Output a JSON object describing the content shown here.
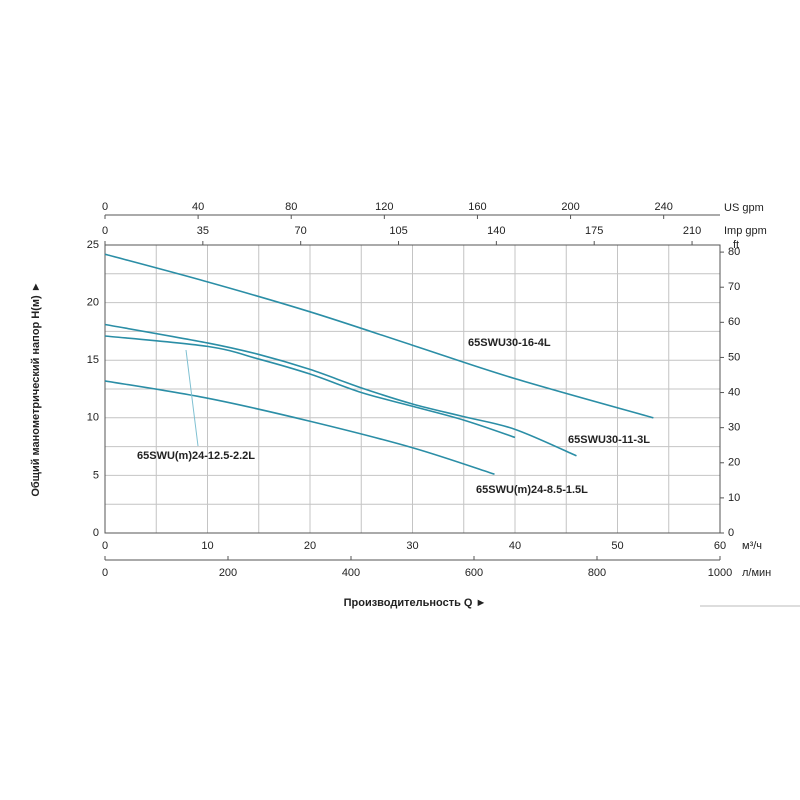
{
  "chart_data": {
    "type": "line",
    "y_label": "Общий манометрический напор  H(м)  ►",
    "x_label": "Производительность Q  ►",
    "x_unit": "м³/ч",
    "xlim": [
      0,
      60
    ],
    "xticks": [
      0,
      10,
      20,
      30,
      40,
      50,
      60
    ],
    "x_minor_ticks": [
      5,
      15,
      25,
      35,
      45,
      55
    ],
    "ylim": [
      0,
      25
    ],
    "yticks": [
      0,
      5,
      10,
      15,
      20,
      25
    ],
    "y_minor_ticks": [
      2.5,
      7.5,
      12.5,
      17.5,
      22.5
    ],
    "y2_unit": "ft",
    "y2lim": [
      0,
      82.02
    ],
    "y2ticks": [
      0,
      10,
      20,
      30,
      40,
      50,
      60,
      70,
      80
    ],
    "x2_unit": "л/мин",
    "x2lim": [
      0,
      1000
    ],
    "x2ticks": [
      0,
      200,
      400,
      600,
      800,
      1000
    ],
    "x3_unit": "US gpm",
    "x3lim": [
      0,
      264.2
    ],
    "x3ticks": [
      0,
      40,
      80,
      120,
      160,
      200,
      240
    ],
    "x4_unit": "Imp gpm",
    "x4lim": [
      0,
      220
    ],
    "x4ticks": [
      0,
      35,
      70,
      105,
      140,
      175,
      210
    ],
    "grid": true,
    "series": [
      {
        "name": "65SWU30-16-4L",
        "color": "#2b8ea6",
        "x": [
          0,
          10,
          20,
          30,
          40,
          53.5
        ],
        "values": [
          24.2,
          21.8,
          19.2,
          16.3,
          13.4,
          10.0
        ]
      },
      {
        "name": "65SWU30-11-3L",
        "color": "#2b8ea6",
        "x": [
          0,
          10,
          15,
          20,
          25,
          30,
          35,
          40,
          46
        ],
        "values": [
          18.1,
          16.5,
          15.5,
          14.2,
          12.6,
          11.2,
          10.1,
          9.0,
          6.7
        ]
      },
      {
        "name": "65SWU(m)24-12.5-2.2L",
        "color": "#2b8ea6",
        "x": [
          0,
          10,
          15,
          20,
          25,
          30,
          35,
          40
        ],
        "values": [
          17.1,
          16.2,
          15.1,
          13.8,
          12.2,
          11.0,
          9.8,
          8.3
        ]
      },
      {
        "name": "65SWU(m)24-8.5-1.5L",
        "color": "#2b8ea6",
        "x": [
          0,
          10,
          20,
          30,
          38
        ],
        "values": [
          13.2,
          11.7,
          9.7,
          7.4,
          5.1
        ]
      }
    ]
  }
}
